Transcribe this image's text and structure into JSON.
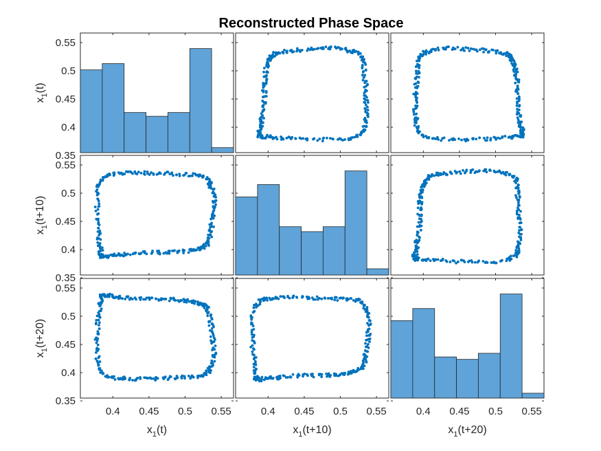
{
  "chart_data": {
    "type": "scatter",
    "layout": "scatter-matrix",
    "title": "Reconstructed Phase Space",
    "variables": [
      {
        "base": "x",
        "sub": "1",
        "arg": "(t)"
      },
      {
        "base": "x",
        "sub": "1",
        "arg": "(t+10)"
      },
      {
        "base": "x",
        "sub": "1",
        "arg": "(t+20)"
      }
    ],
    "axis_range": [
      0.355,
      0.567
    ],
    "x_ticks": [
      0.4,
      0.45,
      0.5,
      0.55
    ],
    "x_tick_labels": [
      "0.4",
      "0.45",
      "0.5",
      "0.55"
    ],
    "y_ticks": [
      0.35,
      0.4,
      0.45,
      0.5,
      0.55
    ],
    "y_tick_labels": [
      "0.35",
      "0.4",
      "0.45",
      "0.5",
      "0.55"
    ],
    "diagonal": "histogram",
    "histogram_bin_edges": [
      0.355,
      0.3853,
      0.4156,
      0.4459,
      0.4761,
      0.5064,
      0.5367,
      0.567
    ],
    "histograms": [
      {
        "variable": "x1(t)",
        "counts": [
          66,
          71,
          32,
          29,
          32,
          83,
          4
        ]
      },
      {
        "variable": "x1(t+10)",
        "counts": [
          63,
          73,
          39,
          35,
          39,
          84,
          5
        ]
      },
      {
        "variable": "x1(t+20)",
        "counts": [
          64,
          74,
          34,
          32,
          37,
          86,
          4
        ]
      }
    ],
    "cycle_curve": {
      "description": "limit cycle sampled by each off-diagonal scatter",
      "points": 320,
      "x_values": [
        0.385,
        0.4,
        0.42,
        0.45,
        0.48,
        0.505,
        0.52,
        0.53,
        0.535,
        0.538,
        0.54,
        0.535,
        0.525,
        0.5,
        0.47,
        0.44,
        0.41,
        0.39,
        0.38,
        0.378,
        0.38,
        0.383
      ],
      "y_values": [
        0.388,
        0.39,
        0.392,
        0.395,
        0.395,
        0.398,
        0.402,
        0.41,
        0.43,
        0.46,
        0.49,
        0.515,
        0.53,
        0.533,
        0.535,
        0.536,
        0.535,
        0.53,
        0.51,
        0.47,
        0.43,
        0.4
      ]
    },
    "marker_color": "#0072BD",
    "bar_color": "#5FA3D8",
    "bar_edge_color": "#262626"
  }
}
